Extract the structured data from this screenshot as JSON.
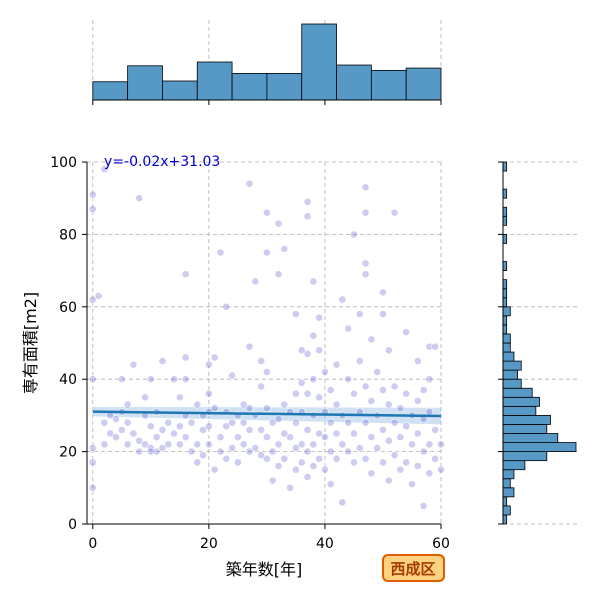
{
  "chart_data": {
    "type": "scatter",
    "subtype": "jointplot-with-regression",
    "xlabel": "築年数[年]",
    "ylabel": "専有面積[m2]",
    "xlim": [
      -1,
      60
    ],
    "ylim": [
      0,
      100
    ],
    "x_ticks": [
      0,
      20,
      40,
      60
    ],
    "y_ticks": [
      0,
      20,
      40,
      60,
      80,
      100
    ],
    "grid": true,
    "regression": {
      "equation_label": "y=-0.02x+31.03",
      "slope": -0.02,
      "intercept": 31.03,
      "line_color": "#1f77b4",
      "ci_color": "#a8c8e8"
    },
    "point_color": "#4b4bd0",
    "points": [
      [
        0,
        10
      ],
      [
        0,
        17
      ],
      [
        0,
        21
      ],
      [
        0,
        40
      ],
      [
        0,
        62
      ],
      [
        0,
        87
      ],
      [
        0,
        91
      ],
      [
        1,
        63
      ],
      [
        2,
        98
      ],
      [
        2,
        28
      ],
      [
        2,
        22
      ],
      [
        3,
        25
      ],
      [
        3,
        30
      ],
      [
        4,
        24
      ],
      [
        4,
        29
      ],
      [
        5,
        31
      ],
      [
        5,
        26
      ],
      [
        5,
        40
      ],
      [
        6,
        22
      ],
      [
        6,
        28
      ],
      [
        6,
        33
      ],
      [
        7,
        44
      ],
      [
        7,
        25
      ],
      [
        8,
        20
      ],
      [
        8,
        23
      ],
      [
        8,
        90
      ],
      [
        9,
        35
      ],
      [
        9,
        30
      ],
      [
        9,
        22
      ],
      [
        10,
        40
      ],
      [
        10,
        27
      ],
      [
        10,
        21
      ],
      [
        10,
        20
      ],
      [
        11,
        31
      ],
      [
        11,
        24
      ],
      [
        11,
        20
      ],
      [
        12,
        21
      ],
      [
        12,
        26
      ],
      [
        12,
        45
      ],
      [
        13,
        28
      ],
      [
        13,
        22
      ],
      [
        14,
        40
      ],
      [
        14,
        25
      ],
      [
        15,
        35
      ],
      [
        15,
        27
      ],
      [
        15,
        22
      ],
      [
        16,
        69
      ],
      [
        16,
        46
      ],
      [
        16,
        40
      ],
      [
        16,
        30
      ],
      [
        16,
        24
      ],
      [
        17,
        20
      ],
      [
        17,
        28
      ],
      [
        18,
        33
      ],
      [
        18,
        22
      ],
      [
        18,
        17
      ],
      [
        19,
        30
      ],
      [
        19,
        26
      ],
      [
        19,
        19
      ],
      [
        20,
        44
      ],
      [
        20,
        36
      ],
      [
        20,
        31
      ],
      [
        20,
        27
      ],
      [
        20,
        22
      ],
      [
        21,
        15
      ],
      [
        21,
        32
      ],
      [
        21,
        46
      ],
      [
        22,
        75
      ],
      [
        22,
        24
      ],
      [
        22,
        20
      ],
      [
        23,
        60
      ],
      [
        23,
        27
      ],
      [
        23,
        31
      ],
      [
        23,
        18
      ],
      [
        24,
        41
      ],
      [
        24,
        28
      ],
      [
        24,
        21
      ],
      [
        25,
        30
      ],
      [
        25,
        24
      ],
      [
        25,
        17
      ],
      [
        26,
        33
      ],
      [
        26,
        28
      ],
      [
        26,
        22
      ],
      [
        27,
        94
      ],
      [
        27,
        49
      ],
      [
        27,
        32
      ],
      [
        27,
        26
      ],
      [
        27,
        20
      ],
      [
        28,
        67
      ],
      [
        28,
        30
      ],
      [
        28,
        21
      ],
      [
        29,
        45
      ],
      [
        29,
        38
      ],
      [
        29,
        26
      ],
      [
        29,
        19
      ],
      [
        30,
        86
      ],
      [
        30,
        75
      ],
      [
        30,
        42
      ],
      [
        30,
        32
      ],
      [
        30,
        24
      ],
      [
        30,
        18
      ],
      [
        31,
        28
      ],
      [
        31,
        20
      ],
      [
        31,
        12
      ],
      [
        32,
        83
      ],
      [
        32,
        69
      ],
      [
        32,
        29
      ],
      [
        32,
        22
      ],
      [
        32,
        16
      ],
      [
        33,
        76
      ],
      [
        33,
        33
      ],
      [
        33,
        25
      ],
      [
        33,
        18
      ],
      [
        34,
        31
      ],
      [
        34,
        24
      ],
      [
        34,
        10
      ],
      [
        35,
        58
      ],
      [
        35,
        36
      ],
      [
        35,
        28
      ],
      [
        35,
        21
      ],
      [
        35,
        15
      ],
      [
        36,
        48
      ],
      [
        36,
        39
      ],
      [
        36,
        31
      ],
      [
        36,
        22
      ],
      [
        36,
        17
      ],
      [
        37,
        89
      ],
      [
        37,
        85
      ],
      [
        37,
        47
      ],
      [
        37,
        36
      ],
      [
        37,
        26
      ],
      [
        37,
        20
      ],
      [
        37,
        13
      ],
      [
        38,
        67
      ],
      [
        38,
        52
      ],
      [
        38,
        40
      ],
      [
        38,
        30
      ],
      [
        38,
        22
      ],
      [
        38,
        16
      ],
      [
        39,
        57
      ],
      [
        39,
        48
      ],
      [
        39,
        35
      ],
      [
        39,
        25
      ],
      [
        39,
        18
      ],
      [
        40,
        42
      ],
      [
        40,
        31
      ],
      [
        40,
        24
      ],
      [
        40,
        15
      ],
      [
        41,
        37
      ],
      [
        41,
        28
      ],
      [
        41,
        20
      ],
      [
        41,
        11
      ],
      [
        42,
        44
      ],
      [
        42,
        33
      ],
      [
        42,
        25
      ],
      [
        42,
        18
      ],
      [
        43,
        62
      ],
      [
        43,
        30
      ],
      [
        43,
        22
      ],
      [
        43,
        6
      ],
      [
        44,
        54
      ],
      [
        44,
        40
      ],
      [
        44,
        28
      ],
      [
        44,
        20
      ],
      [
        45,
        80
      ],
      [
        45,
        36
      ],
      [
        45,
        25
      ],
      [
        45,
        17
      ],
      [
        46,
        58
      ],
      [
        46,
        45
      ],
      [
        46,
        31
      ],
      [
        46,
        21
      ],
      [
        47,
        93
      ],
      [
        47,
        86
      ],
      [
        47,
        72
      ],
      [
        47,
        69
      ],
      [
        47,
        38
      ],
      [
        47,
        28
      ],
      [
        47,
        18
      ],
      [
        48,
        51
      ],
      [
        48,
        34
      ],
      [
        48,
        24
      ],
      [
        48,
        14
      ],
      [
        49,
        42
      ],
      [
        49,
        30
      ],
      [
        49,
        21
      ],
      [
        50,
        64
      ],
      [
        50,
        58
      ],
      [
        50,
        37
      ],
      [
        50,
        26
      ],
      [
        50,
        17
      ],
      [
        51,
        48
      ],
      [
        51,
        33
      ],
      [
        51,
        23
      ],
      [
        51,
        12
      ],
      [
        52,
        86
      ],
      [
        52,
        38
      ],
      [
        52,
        28
      ],
      [
        52,
        19
      ],
      [
        53,
        32
      ],
      [
        53,
        24
      ],
      [
        53,
        15
      ],
      [
        54,
        53
      ],
      [
        54,
        36
      ],
      [
        54,
        27
      ],
      [
        54,
        17
      ],
      [
        55,
        30
      ],
      [
        55,
        22
      ],
      [
        55,
        11
      ],
      [
        56,
        45
      ],
      [
        56,
        34
      ],
      [
        56,
        25
      ],
      [
        56,
        16
      ],
      [
        57,
        37
      ],
      [
        57,
        29
      ],
      [
        57,
        20
      ],
      [
        57,
        5
      ],
      [
        58,
        49
      ],
      [
        58,
        40
      ],
      [
        58,
        31
      ],
      [
        58,
        22
      ],
      [
        58,
        14
      ],
      [
        59,
        49
      ],
      [
        59,
        26
      ],
      [
        59,
        18
      ],
      [
        60,
        22
      ],
      [
        60,
        15
      ]
    ],
    "marginal_x": {
      "bin_edges": [
        0,
        6,
        12,
        18,
        24,
        30,
        36,
        42,
        48,
        54,
        60
      ],
      "counts": [
        24,
        45,
        25,
        50,
        35,
        35,
        100,
        46,
        39,
        42
      ],
      "max": 100
    },
    "marginal_y": {
      "bin_edges": [
        0,
        2.5,
        5,
        7.5,
        10,
        12.5,
        15,
        17.5,
        20,
        22.5,
        25,
        27.5,
        30,
        32.5,
        35,
        37.5,
        40,
        42.5,
        45,
        47.5,
        50,
        52.5,
        55,
        57.5,
        60,
        62.5,
        65,
        67.5,
        70,
        72.5,
        75,
        77.5,
        80,
        82.5,
        85,
        87.5,
        90,
        92.5,
        95,
        97.5,
        100
      ],
      "counts": [
        1,
        2,
        1,
        3,
        2,
        3,
        6,
        12,
        20,
        15,
        12,
        13,
        9,
        10,
        8,
        5,
        4,
        5,
        3,
        2,
        2,
        1,
        1,
        2,
        1,
        1,
        1,
        0,
        1,
        0,
        0,
        1,
        0,
        1,
        1,
        0,
        1,
        0,
        0,
        1
      ],
      "max": 20
    }
  },
  "badge": {
    "label": "西成区"
  }
}
